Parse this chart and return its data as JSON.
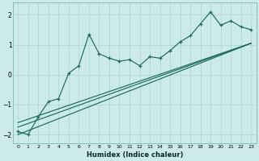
{
  "xlabel": "Humidex (Indice chaleur)",
  "bg_color": "#cceaea",
  "line_color": "#1a6b5a",
  "grid_color": "#aad4d4",
  "xlim": [
    -0.5,
    23.5
  ],
  "ylim": [
    -2.3,
    2.4
  ],
  "xticks": [
    0,
    1,
    2,
    3,
    4,
    5,
    6,
    7,
    8,
    9,
    10,
    11,
    12,
    13,
    14,
    15,
    16,
    17,
    18,
    19,
    20,
    21,
    22,
    23
  ],
  "yticks": [
    -2,
    -1,
    0,
    1,
    2
  ],
  "series1_x": [
    0,
    1,
    2,
    3,
    4,
    5,
    6,
    7,
    8,
    9,
    10,
    11,
    12,
    13,
    14,
    15,
    16,
    17,
    18,
    19,
    20,
    21,
    22,
    23
  ],
  "series1_y": [
    -1.9,
    -2.0,
    -1.4,
    -0.9,
    -0.8,
    0.05,
    0.3,
    1.35,
    0.7,
    0.55,
    0.45,
    0.5,
    0.3,
    0.6,
    0.55,
    0.8,
    1.1,
    1.3,
    1.7,
    2.1,
    1.65,
    1.8,
    1.6,
    1.5
  ],
  "line2_x": [
    0,
    23
  ],
  "line2_y": [
    -2.0,
    1.05
  ],
  "line3_x": [
    0,
    23
  ],
  "line3_y": [
    -1.75,
    1.05
  ],
  "line4_x": [
    0,
    23
  ],
  "line4_y": [
    -1.6,
    1.05
  ]
}
